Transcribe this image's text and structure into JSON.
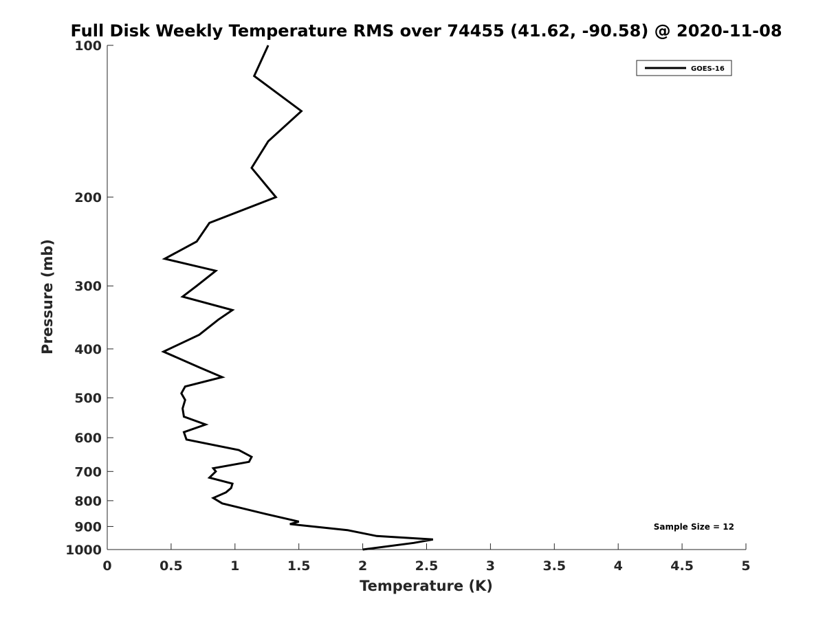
{
  "chart_data": {
    "type": "line",
    "title": "Full Disk Weekly Temperature RMS over 74455 (41.62, -90.58) @ 2020-11-08",
    "xlabel": "Temperature (K)",
    "ylabel": "Pressure (mb)",
    "xlim": [
      0,
      5
    ],
    "ylim": [
      100,
      1000
    ],
    "y_scale": "log",
    "y_reversed": true,
    "x_ticks": [
      0,
      0.5,
      1,
      1.5,
      2,
      2.5,
      3,
      3.5,
      4,
      4.5,
      5
    ],
    "x_tick_labels": [
      "0",
      "0.5",
      "1",
      "1.5",
      "2",
      "2.5",
      "3",
      "3.5",
      "4",
      "4.5",
      "5"
    ],
    "y_ticks": [
      100,
      200,
      300,
      400,
      500,
      600,
      700,
      800,
      900,
      1000
    ],
    "y_tick_labels": [
      "100",
      "200",
      "300",
      "400",
      "500",
      "600",
      "700",
      "800",
      "900",
      "1000"
    ],
    "grid": false,
    "legend_position": "top-right",
    "series": [
      {
        "name": "GOES-16",
        "color": "#000000",
        "x": [
          1.26,
          1.15,
          1.52,
          1.26,
          1.13,
          1.32,
          0.8,
          0.7,
          0.45,
          0.85,
          0.7,
          0.59,
          0.98,
          0.87,
          0.72,
          0.44,
          0.72,
          0.9,
          0.61,
          0.58,
          0.61,
          0.59,
          0.6,
          0.77,
          0.6,
          0.62,
          1.03,
          1.13,
          1.11,
          0.83,
          0.85,
          0.8,
          0.98,
          0.97,
          0.93,
          0.83,
          0.9,
          1.24,
          1.5,
          1.43,
          1.88,
          2.11,
          2.55,
          2.4,
          2.0
        ],
        "y": [
          100,
          115,
          135,
          155,
          175,
          200,
          225,
          245,
          265,
          280,
          300,
          315,
          335,
          350,
          375,
          405,
          435,
          455,
          475,
          490,
          505,
          525,
          545,
          565,
          585,
          605,
          635,
          655,
          670,
          690,
          700,
          720,
          740,
          755,
          770,
          790,
          810,
          850,
          880,
          890,
          915,
          940,
          955,
          970,
          1000
        ]
      }
    ],
    "annotations": [
      "Sample Size = 12"
    ]
  }
}
